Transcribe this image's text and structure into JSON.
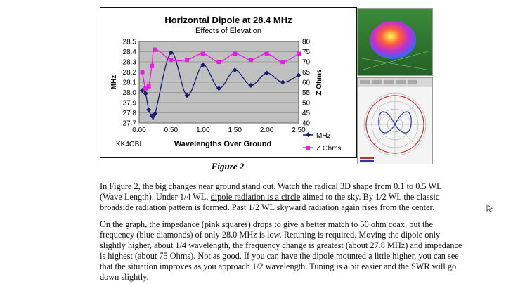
{
  "chart_data": {
    "type": "line",
    "title": "Horizontal Dipole at 28.4 MHz",
    "subtitle": "Effects of Elevation",
    "xlabel": "Wavelengths Over Ground",
    "ylabel_left": "MHz",
    "ylabel_right": "Z Ohms",
    "x_ticks": [
      "0.00",
      "0.50",
      "1.00",
      "1.50",
      "2.00",
      "2.50"
    ],
    "y_left_ticks": [
      "27.7",
      "27.8",
      "27.9",
      "28.0",
      "28.1",
      "28.2",
      "28.3",
      "28.4",
      "28.5"
    ],
    "y_right_ticks": [
      "40",
      "45",
      "50",
      "55",
      "60",
      "65",
      "70",
      "75",
      "80"
    ],
    "xlim": [
      0,
      2.5
    ],
    "ylim_left": [
      27.7,
      28.5
    ],
    "ylim_right": [
      40,
      80
    ],
    "annotation": "KK4OBI",
    "series": [
      {
        "name": "MHz",
        "axis": "left",
        "color": "#1a1a6e",
        "x": [
          0.05,
          0.1,
          0.15,
          0.2,
          0.25,
          0.5,
          0.75,
          1.0,
          1.25,
          1.5,
          1.75,
          2.0,
          2.25,
          2.5
        ],
        "y": [
          28.02,
          27.99,
          27.83,
          27.77,
          27.79,
          28.39,
          27.97,
          28.27,
          28.04,
          28.22,
          28.07,
          28.19,
          28.1,
          28.17
        ]
      },
      {
        "name": "Z Ohms",
        "axis": "right",
        "color": "#e020e0",
        "x": [
          0.05,
          0.1,
          0.15,
          0.2,
          0.25,
          0.5,
          0.75,
          1.0,
          1.25,
          1.5,
          1.75,
          2.0,
          2.25,
          2.5
        ],
        "y": [
          65,
          57,
          58,
          68,
          76,
          71,
          71,
          74,
          70,
          74,
          71,
          74,
          70,
          74
        ]
      }
    ]
  },
  "figure": {
    "caption": "Figure 2"
  },
  "article": {
    "p1_a": "In Figure 2, the big changes near ground stand out. Watch the radical 3D shape from 0.1 to 0.5 WL (Wave Length).  Under 1/4 WL, ",
    "p1_link": "dipole radiation is a circle",
    "p1_b": " aimed to the sky. By 1/2 WL the classic broadside radiation pattern is formed.  Past 1/2 WL skyward radiation again rises from the center.",
    "p2": "On the graph, the impedance (pink squares) drops to give a better match to 50 ohm coax, but the frequency (blue diamonds) of only 28.0 MHz  is low. Retuning is required.  Moving the dipole only slightly higher, about 1/4 wavelength, the frequency change is greatest (about 27.8 MHz) and impedance is highest (about 75 Ohms). Not as good.  If you can have the dipole mounted a little higher, you can see that the situation improves as you approach 1/2 wavelength. Tuning is a bit easier and the SWR will go down slightly."
  },
  "colors": {
    "plot_bg": "#c0c0c0",
    "mhz": "#1a1a6e",
    "zohms": "#e020e0"
  }
}
